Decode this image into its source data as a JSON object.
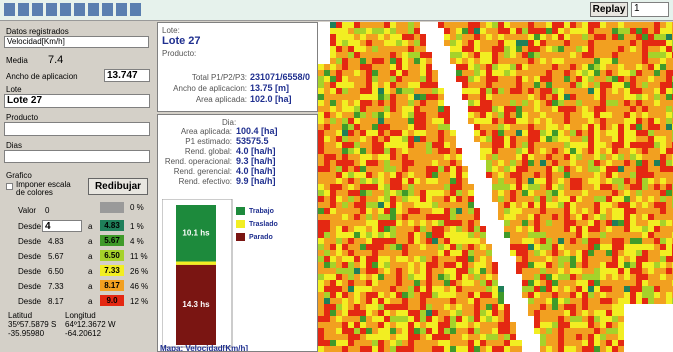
{
  "toolbar": {
    "replay": "Replay",
    "page": "1"
  },
  "left": {
    "datos_label": "Datos registrados",
    "variable": "Velocidad[Km/h]",
    "media_label": "Media",
    "media": "7.4",
    "ancho_label": "Ancho de aplicacion",
    "ancho": "13.747",
    "lote_label": "Lote",
    "lote": "Lote 27",
    "producto_label": "Producto",
    "dias_label": "Dias",
    "grafico_label": "Grafico",
    "imponer": "Imponer escala de colores",
    "redibujar": "Redibujar",
    "valor_label": "Valor",
    "valor": "0",
    "zero_pct": "0 %",
    "zero_color": "#9a9a9a",
    "desde": "Desde",
    "a": "a",
    "ranges": [
      {
        "from": "4",
        "to": "4.83",
        "pct": "1 %",
        "color": "#1f7f5a"
      },
      {
        "from": "4.83",
        "to": "5.67",
        "pct": "4 %",
        "color": "#3f9a2a"
      },
      {
        "from": "5.67",
        "to": "6.50",
        "pct": "11 %",
        "color": "#a6d22a"
      },
      {
        "from": "6.50",
        "to": "7.33",
        "pct": "26 %",
        "color": "#f2ee22"
      },
      {
        "from": "7.33",
        "to": "8.17",
        "pct": "46 %",
        "color": "#f2a020"
      },
      {
        "from": "8.17",
        "to": "9.0",
        "pct": "12 %",
        "color": "#e42812"
      }
    ],
    "lat_label": "Latitud",
    "lat_dms": "35º57.5879 S",
    "lat": "-35.95980",
    "lon_label": "Longitud",
    "lon_dms": "64º12.3672 W",
    "lon": "-64.20612"
  },
  "summary": {
    "lote_label": "Lote:",
    "lote": "Lote 27",
    "producto_label": "Producto:",
    "rows": [
      [
        "Total P1/P2/P3:",
        "231071/6558/0"
      ],
      [
        "Ancho de aplicacion:",
        "13.75 [m]"
      ],
      [
        "Area aplicada:",
        "102.0 [ha]"
      ]
    ]
  },
  "day": {
    "title": "Dia:",
    "rows": [
      [
        "Area aplicada:",
        "100.4 [ha]"
      ],
      [
        "P1 estimado:",
        "53575.5"
      ],
      [
        "Rend. global:",
        "4.0 [ha/h]"
      ],
      [
        "Rend. operacional:",
        "9.3 [ha/h]"
      ],
      [
        "Rend. gerencial:",
        "4.0 [ha/h]"
      ],
      [
        "Rend. efectivo:",
        "9.9 [ha/h]"
      ]
    ],
    "time_chart": {
      "segments": [
        {
          "name": "Trabajo",
          "color": "#1d8a3c",
          "value": 10.1,
          "label": "10.1 hs"
        },
        {
          "name": "Traslado",
          "color": "#f2ee22",
          "value": 0.6
        },
        {
          "name": "Parado",
          "color": "#7a1512",
          "value": 14.3,
          "label": "14.3 hs"
        }
      ]
    }
  },
  "map_caption": "Mapa: Velocidad[Km/h]"
}
